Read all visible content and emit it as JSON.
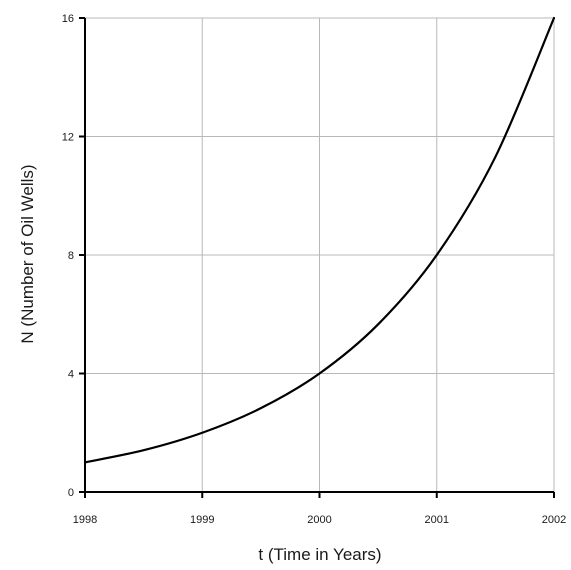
{
  "chart_data": {
    "type": "line",
    "xlabel": "t  (Time in Years)",
    "ylabel": "N  (Number of Oil Wells)",
    "x_ticks": [
      "1998",
      "1999",
      "2000",
      "2001",
      "2002"
    ],
    "y_ticks": [
      "0",
      "4",
      "8",
      "12",
      "16"
    ],
    "xlim": [
      1998,
      2002
    ],
    "ylim": [
      0,
      16
    ],
    "grid": true,
    "series": [
      {
        "x": [
          1998,
          1998.5,
          1999,
          1999.5,
          2000,
          2000.5,
          2001,
          2001.5,
          2002
        ],
        "y": [
          1,
          1.41,
          2,
          2.83,
          4,
          5.66,
          8,
          11.31,
          16
        ]
      }
    ]
  }
}
